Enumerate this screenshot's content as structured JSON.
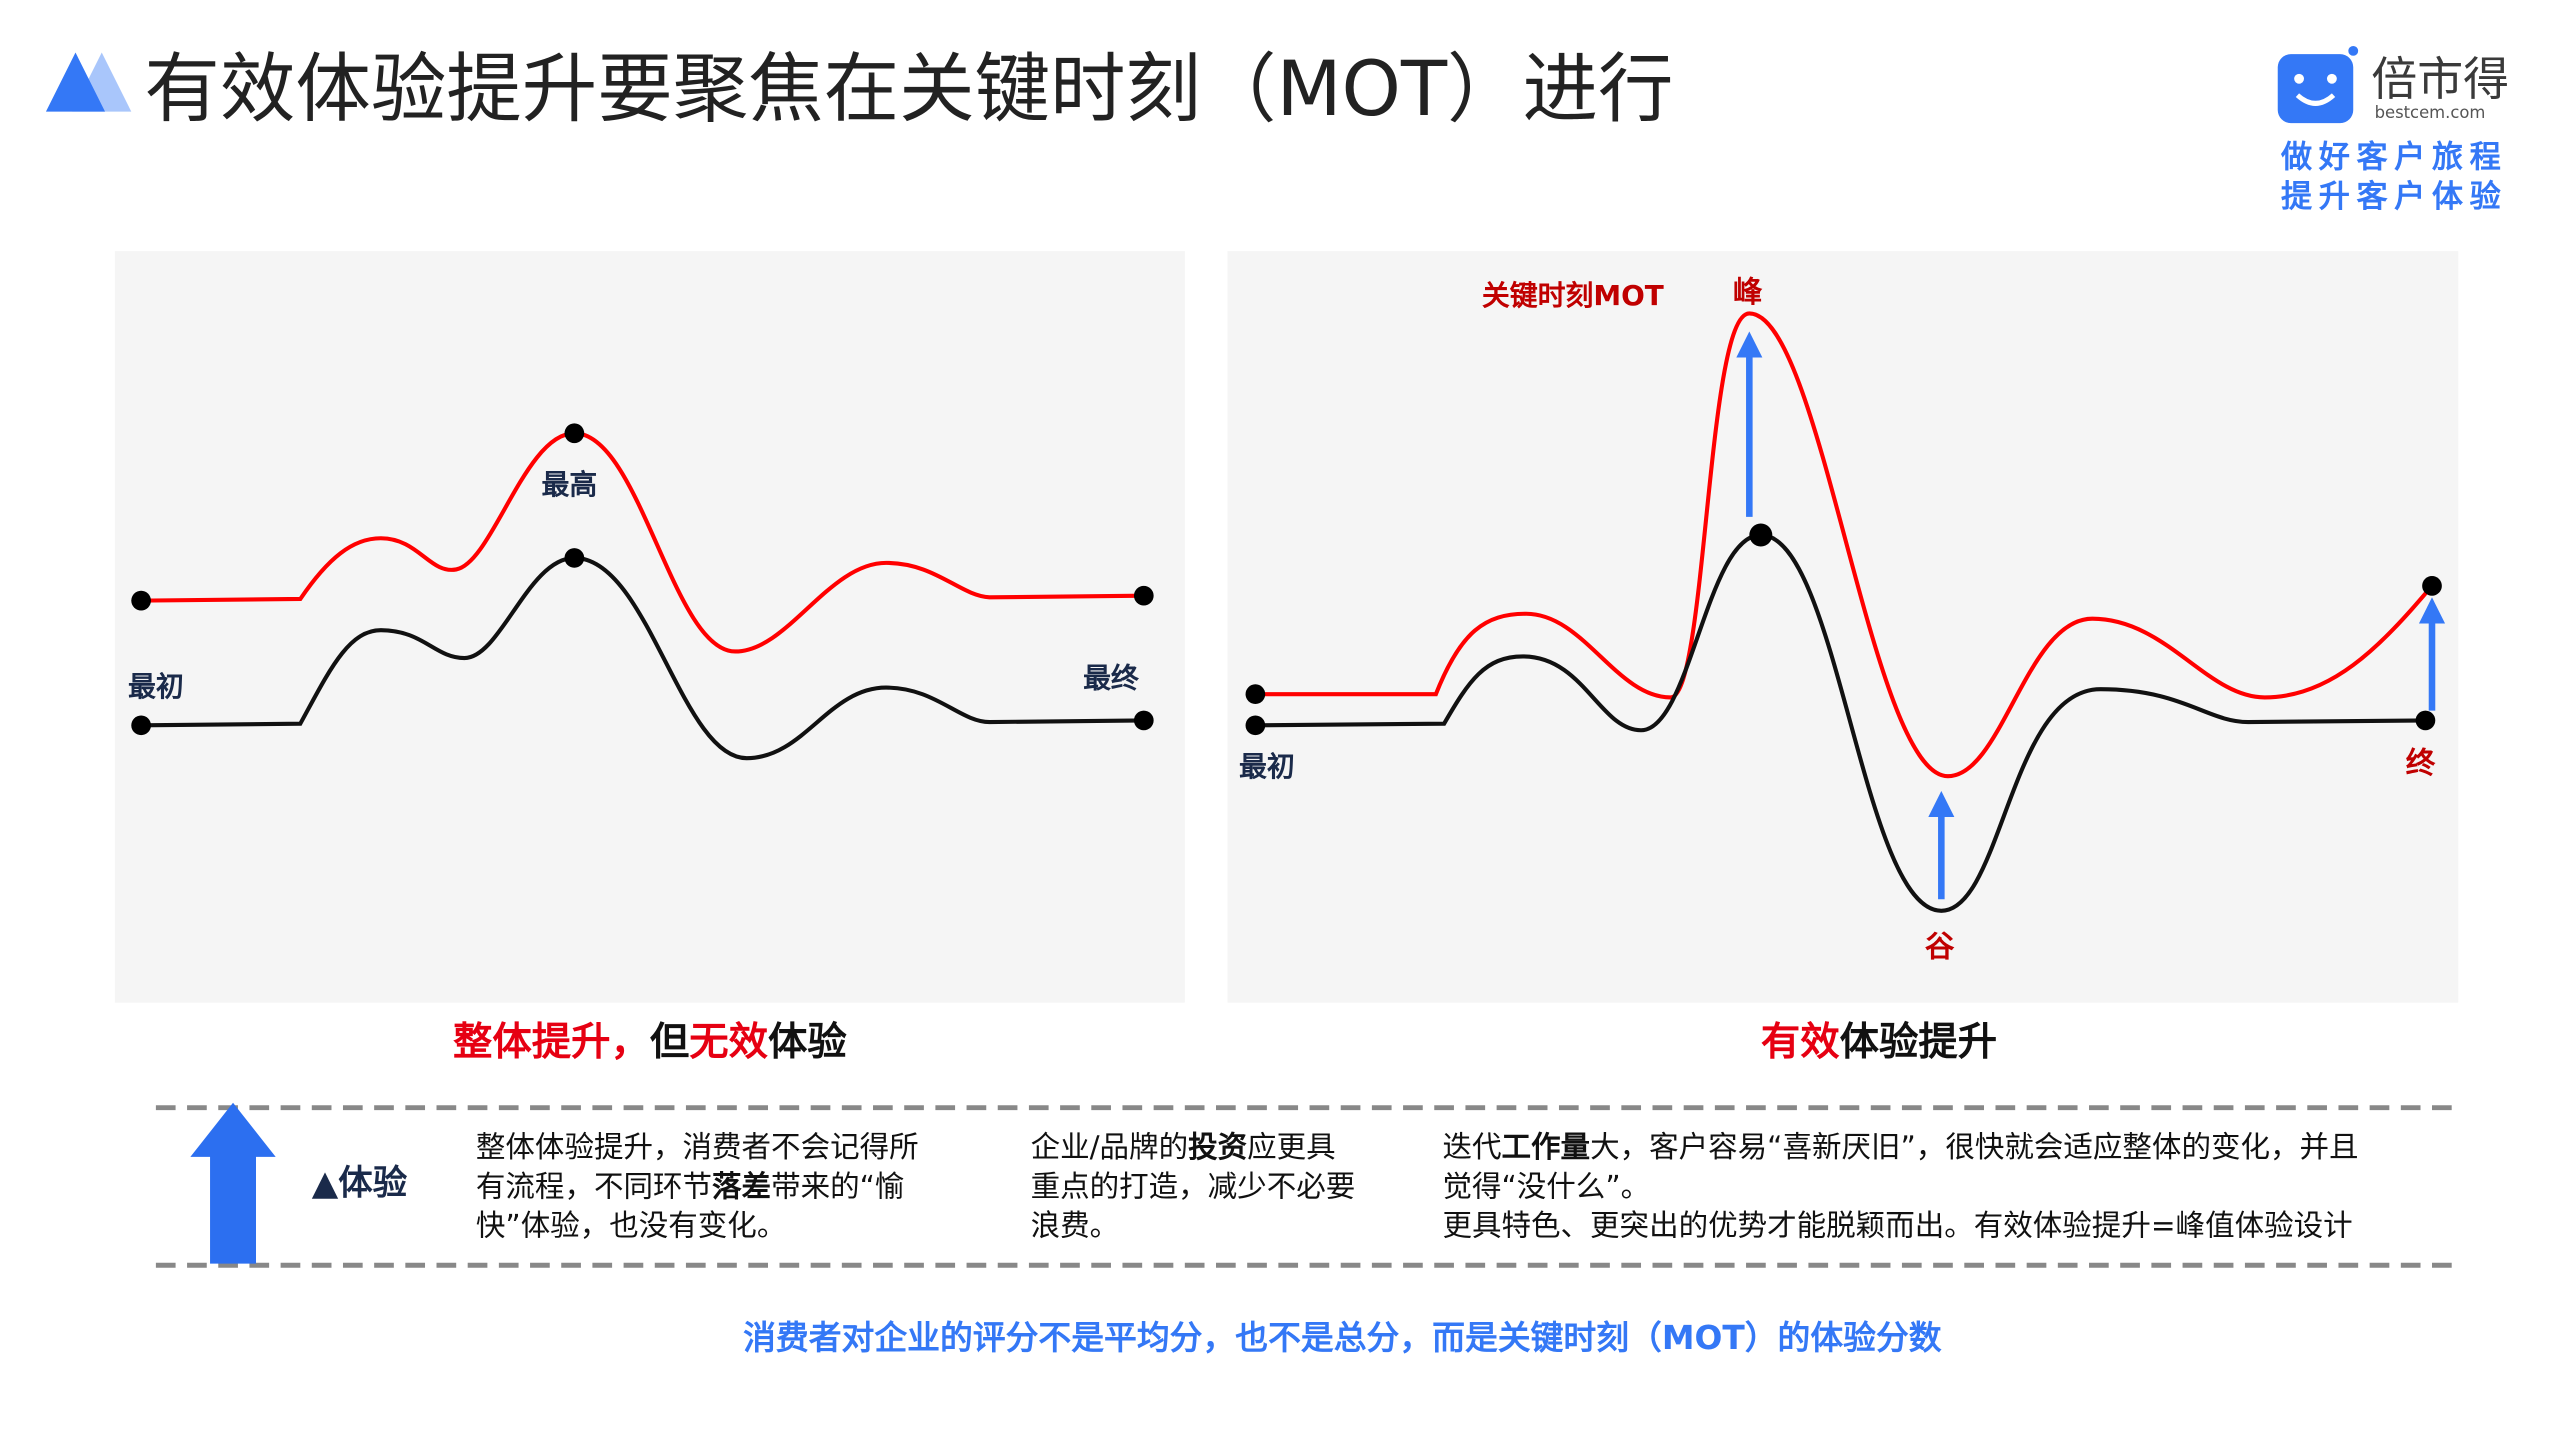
{
  "header": {
    "title": "有效体验提升要聚焦在关键时刻（MOT）进行",
    "logo_name": "倍市得",
    "logo_domain": "bestcem.com",
    "slogan_1": "做好客户旅程",
    "slogan_2": "提升客户体验"
  },
  "left_panel": {
    "label_peak": "最高",
    "label_start": "最初",
    "label_end": "最终",
    "caption": [
      {
        "text": "整体提升，",
        "color": "#e60012"
      },
      {
        "text": "但",
        "color": "#111111"
      },
      {
        "text": "无效",
        "color": "#e60012"
      },
      {
        "text": "体验",
        "color": "#111111"
      }
    ]
  },
  "right_panel": {
    "label_mot": "关键时刻MOT",
    "label_peak": "峰",
    "label_valley": "谷",
    "label_start": "最初",
    "label_end": "终",
    "caption": [
      {
        "text": "有效",
        "color": "#e60012"
      },
      {
        "text": "体验提升",
        "color": "#111111"
      }
    ]
  },
  "notes": {
    "label": "▲体验",
    "col_1": [
      [
        {
          "text": "整体体验提升，消费者不会记得所"
        }
      ],
      [
        {
          "text": "有流程，不同环节"
        },
        {
          "text": "落差",
          "bold": true
        },
        {
          "text": "带来的“愉"
        }
      ],
      [
        {
          "text": "快”体验，也没有变化。"
        }
      ]
    ],
    "col_2": [
      [
        {
          "text": "企业/品牌的"
        },
        {
          "text": "投资",
          "bold": true
        },
        {
          "text": "应更具"
        }
      ],
      [
        {
          "text": "重点的打造，减少不必要"
        }
      ],
      [
        {
          "text": "浪费。"
        }
      ]
    ],
    "col_3": [
      [
        {
          "text": "迭代"
        },
        {
          "text": "工作量",
          "bold": true
        },
        {
          "text": "大，客户容易“喜新厌旧”，很快就会适应整体的变化，并且"
        }
      ],
      [
        {
          "text": "觉得“没什么”。"
        }
      ],
      [
        {
          "text": "更具特色、更突出的优势才能脱颖而出。有效体验提升=峰值体验设计"
        }
      ]
    ]
  },
  "footer": "消费者对企业的评分不是平均分，也不是总分，而是关键时刻（MOT）的体验分数"
}
